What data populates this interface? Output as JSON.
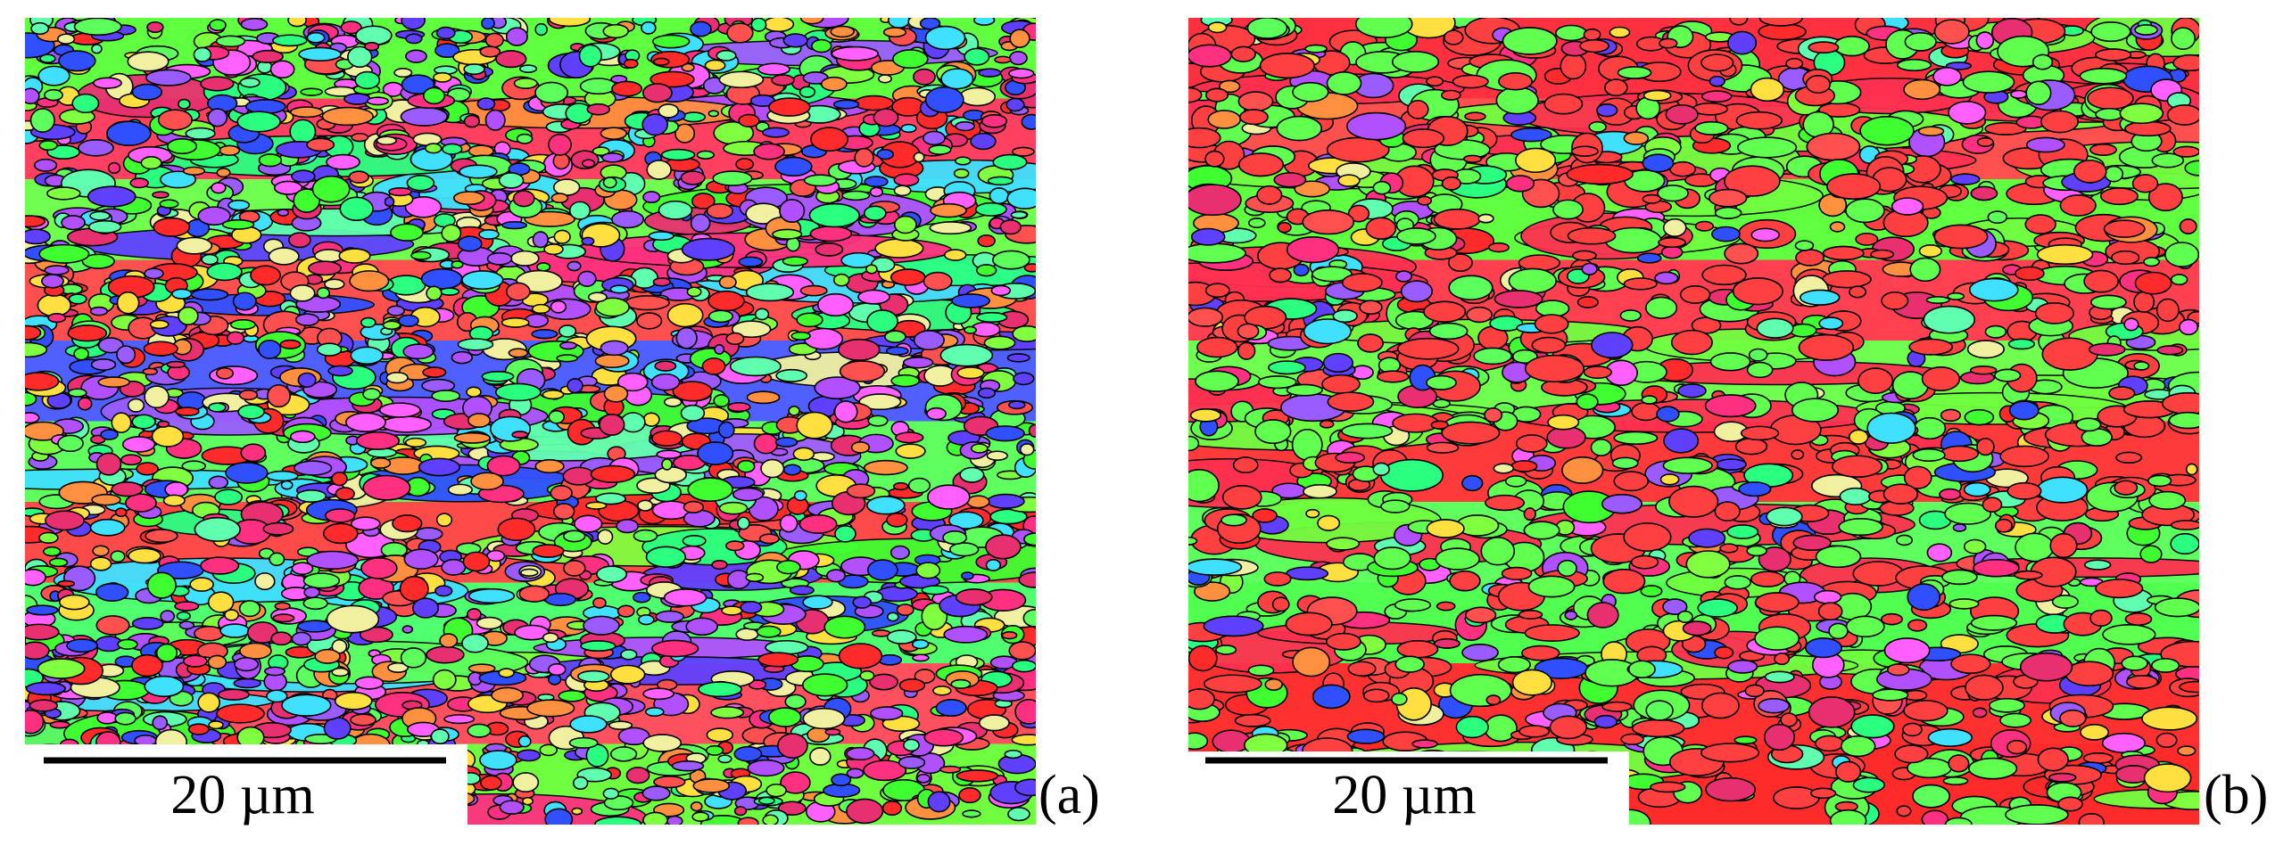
{
  "panels": [
    {
      "scale_label": "20 µm",
      "label": "(a)"
    },
    {
      "scale_label": "20 µm",
      "label": "(b)"
    }
  ]
}
